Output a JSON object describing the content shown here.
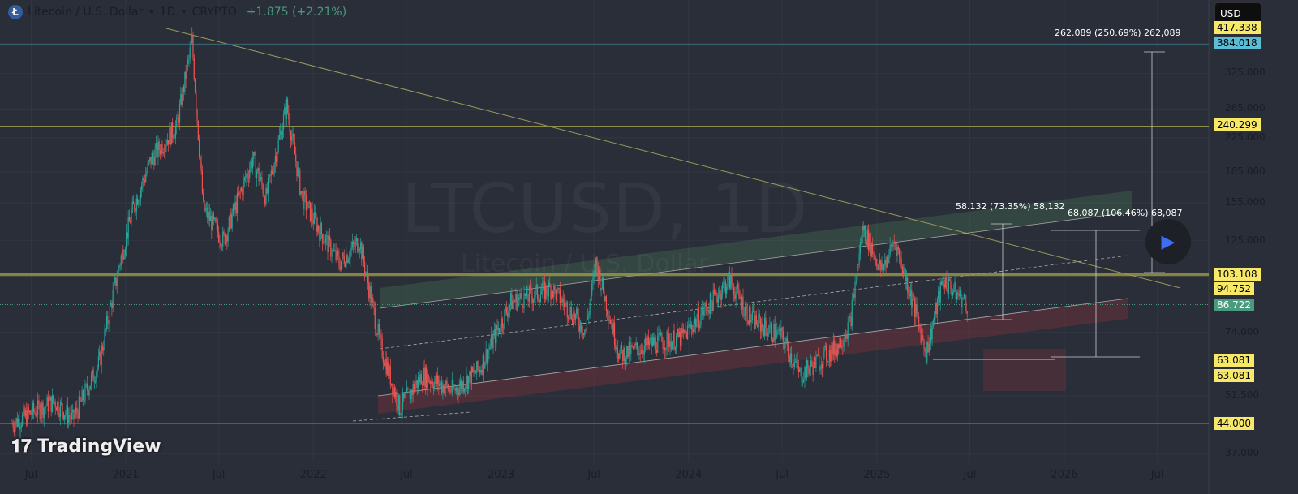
{
  "header": {
    "symbol_title": "Litecoin / U.S. Dollar",
    "interval": "1D",
    "exchange": "CRYPTO",
    "change": "+1.875 (+2.21%)",
    "logo_letter": "Ł"
  },
  "currency_button": "USD",
  "watermark": {
    "main": "LTCUSD, 1D",
    "sub": "Litecoin / U.S. Dollar"
  },
  "brand": "TradingView",
  "colors": {
    "up": "#26a69a",
    "down": "#ef5350",
    "label": "#f7e967",
    "current": "#4a9a7e",
    "cyan": "#5bbcd6",
    "background": "#2a2e39"
  },
  "price_labels": [
    {
      "text": "417.338",
      "price": 417.338,
      "color": "#f7e967"
    },
    {
      "text": "384.018",
      "price": 384.018,
      "color": "#5bbcd6"
    },
    {
      "text": "240.299",
      "price": 240.299,
      "color": "#f7e967"
    },
    {
      "text": "103.108",
      "price": 103.108,
      "color": "#f7e967"
    },
    {
      "text": "94.752",
      "price": 94.752,
      "color": "#f7e967"
    },
    {
      "text": "86.722",
      "price": 86.722,
      "color": "#4a9a7e"
    },
    {
      "text": "63.081",
      "price": 63.081,
      "color": "#f7e967"
    },
    {
      "text": "63.081",
      "price": 63.081,
      "color": "#f7e967"
    },
    {
      "text": "44.000",
      "price": 44.0,
      "color": "#f7e967"
    }
  ],
  "measurements": [
    {
      "text": "262.089 (250.69%) 262,089"
    },
    {
      "text": "58.132 (73.35%) 58,132"
    },
    {
      "text": "68.087 (106.46%) 68,087"
    }
  ],
  "chart_data": {
    "type": "candlestick",
    "scale": "log",
    "grid": true,
    "y_ticks": [
      "325.000",
      "265.000",
      "225.000",
      "185.000",
      "155.000",
      "125.000",
      "74.000",
      "51.500",
      "37.000"
    ],
    "y_tick_values": [
      325,
      265,
      225,
      185,
      155,
      125,
      74,
      51.5,
      37
    ],
    "x_ticks": [
      {
        "label": "Jul",
        "date": "2020-07-01"
      },
      {
        "label": "2021",
        "date": "2021-01-01"
      },
      {
        "label": "Jul",
        "date": "2021-07-01"
      },
      {
        "label": "2022",
        "date": "2022-01-01"
      },
      {
        "label": "Jul",
        "date": "2022-07-01"
      },
      {
        "label": "2023",
        "date": "2023-01-01"
      },
      {
        "label": "Jul",
        "date": "2023-07-01"
      },
      {
        "label": "2024",
        "date": "2024-01-01"
      },
      {
        "label": "Jul",
        "date": "2024-07-01"
      },
      {
        "label": "2025",
        "date": "2025-01-01"
      },
      {
        "label": "Jul",
        "date": "2025-07-01"
      },
      {
        "label": "2026",
        "date": "2026-01-01"
      },
      {
        "label": "Jul",
        "date": "2026-07-01"
      }
    ],
    "price_path": [
      [
        "2020-05-25",
        44
      ],
      [
        "2020-08-15",
        50
      ],
      [
        "2020-09-20",
        45
      ],
      [
        "2020-11-10",
        62
      ],
      [
        "2020-12-20",
        110
      ],
      [
        "2021-01-15",
        150
      ],
      [
        "2021-02-20",
        200
      ],
      [
        "2021-04-10",
        240
      ],
      [
        "2021-05-10",
        390
      ],
      [
        "2021-06-01",
        150
      ],
      [
        "2021-07-10",
        125
      ],
      [
        "2021-09-05",
        200
      ],
      [
        "2021-10-01",
        160
      ],
      [
        "2021-11-10",
        270
      ],
      [
        "2021-12-10",
        160
      ],
      [
        "2022-01-10",
        135
      ],
      [
        "2022-02-20",
        110
      ],
      [
        "2022-04-01",
        125
      ],
      [
        "2022-05-10",
        70
      ],
      [
        "2022-06-18",
        48
      ],
      [
        "2022-08-01",
        58
      ],
      [
        "2022-10-01",
        53
      ],
      [
        "2022-11-20",
        60
      ],
      [
        "2023-01-20",
        88
      ],
      [
        "2023-04-10",
        95
      ],
      [
        "2023-06-15",
        75
      ],
      [
        "2023-07-05",
        110
      ],
      [
        "2023-08-20",
        65
      ],
      [
        "2023-11-01",
        70
      ],
      [
        "2023-12-20",
        72
      ],
      [
        "2024-03-20",
        100
      ],
      [
        "2024-05-01",
        80
      ],
      [
        "2024-07-01",
        72
      ],
      [
        "2024-08-05",
        58
      ],
      [
        "2024-10-15",
        68
      ],
      [
        "2024-11-10",
        78
      ],
      [
        "2024-12-05",
        135
      ],
      [
        "2025-01-10",
        105
      ],
      [
        "2025-02-05",
        125
      ],
      [
        "2025-03-10",
        90
      ],
      [
        "2025-04-07",
        66
      ],
      [
        "2025-05-10",
        100
      ],
      [
        "2025-06-26",
        86.7
      ]
    ]
  }
}
